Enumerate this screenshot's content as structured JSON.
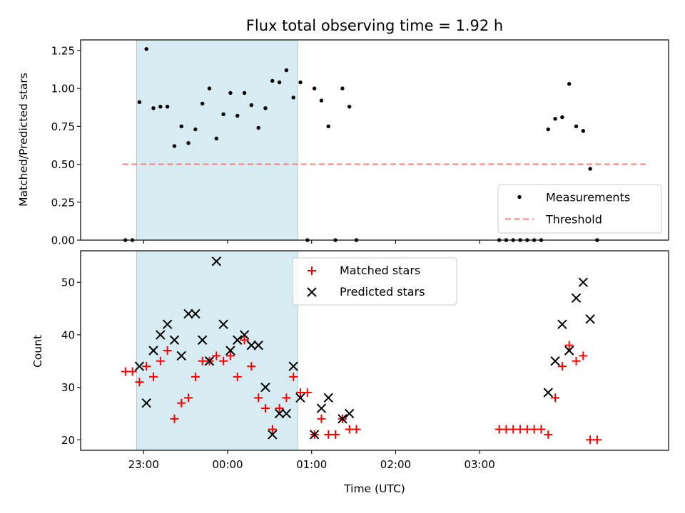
{
  "chart_data": [
    {
      "type": "scatter",
      "title": "Flux total observing time = 1.92 h",
      "ylabel": "Matched/Predicted stars",
      "xlabel": "",
      "ylim": [
        0,
        1.32
      ],
      "xlim_minutes_from_2300": [
        -45,
        375
      ],
      "y_ticks": [
        "0.00",
        "0.25",
        "0.50",
        "0.75",
        "1.00",
        "1.25"
      ],
      "y_tick_values": [
        0,
        0.25,
        0.5,
        0.75,
        1.0,
        1.25
      ],
      "shaded_region_minutes": [
        -5,
        110
      ],
      "threshold": {
        "name": "Threshold",
        "value": 0.5,
        "x_range_minutes": [
          -15,
          360
        ],
        "color": "#ff7f7f"
      },
      "series": [
        {
          "name": "Measurements",
          "color": "#000000",
          "marker": "dot",
          "points": [
            [
              -13,
              0.0
            ],
            [
              -8,
              0.0
            ],
            [
              -3,
              0.91
            ],
            [
              2,
              1.26
            ],
            [
              7,
              0.87
            ],
            [
              12,
              0.88
            ],
            [
              17,
              0.88
            ],
            [
              22,
              0.62
            ],
            [
              27,
              0.75
            ],
            [
              32,
              0.64
            ],
            [
              37,
              0.73
            ],
            [
              42,
              0.9
            ],
            [
              47,
              1.0
            ],
            [
              52,
              0.67
            ],
            [
              57,
              0.83
            ],
            [
              62,
              0.97
            ],
            [
              67,
              0.82
            ],
            [
              72,
              0.97
            ],
            [
              77,
              0.89
            ],
            [
              82,
              0.74
            ],
            [
              87,
              0.87
            ],
            [
              92,
              1.05
            ],
            [
              97,
              1.04
            ],
            [
              102,
              1.12
            ],
            [
              107,
              0.94
            ],
            [
              112,
              1.04
            ],
            [
              117,
              0.0
            ],
            [
              122,
              1.0
            ],
            [
              127,
              0.92
            ],
            [
              132,
              0.75
            ],
            [
              137,
              0.0
            ],
            [
              142,
              1.0
            ],
            [
              147,
              0.88
            ],
            [
              152,
              0.0
            ],
            [
              254,
              0.0
            ],
            [
              259,
              0.0
            ],
            [
              264,
              0.0
            ],
            [
              269,
              0.0
            ],
            [
              274,
              0.0
            ],
            [
              279,
              0.0
            ],
            [
              284,
              0.0
            ],
            [
              289,
              0.73
            ],
            [
              294,
              0.8
            ],
            [
              299,
              0.81
            ],
            [
              304,
              1.03
            ],
            [
              309,
              0.75
            ],
            [
              314,
              0.72
            ],
            [
              319,
              0.47
            ],
            [
              324,
              0.0
            ]
          ]
        }
      ],
      "legend": "lower-right"
    },
    {
      "type": "scatter",
      "title": "",
      "ylabel": "Count",
      "xlabel": "Time (UTC)",
      "ylim": [
        18,
        56
      ],
      "xlim_minutes_from_2300": [
        -45,
        375
      ],
      "x_ticks": [
        "23:00",
        "00:00",
        "01:00",
        "02:00",
        "03:00"
      ],
      "x_tick_minutes": [
        0,
        60,
        120,
        180,
        240
      ],
      "y_ticks": [
        "20",
        "30",
        "40",
        "50"
      ],
      "y_tick_values": [
        20,
        30,
        40,
        50
      ],
      "shaded_region_minutes": [
        -5,
        110
      ],
      "series": [
        {
          "name": "Matched stars",
          "color": "#ff0000",
          "marker": "plus",
          "points": [
            [
              -13,
              33
            ],
            [
              -8,
              33
            ],
            [
              -3,
              31
            ],
            [
              2,
              34
            ],
            [
              7,
              32
            ],
            [
              12,
              35
            ],
            [
              17,
              37
            ],
            [
              22,
              24
            ],
            [
              27,
              27
            ],
            [
              32,
              28
            ],
            [
              37,
              32
            ],
            [
              42,
              35
            ],
            [
              47,
              35
            ],
            [
              52,
              36
            ],
            [
              57,
              35
            ],
            [
              62,
              36
            ],
            [
              67,
              32
            ],
            [
              72,
              39
            ],
            [
              77,
              34
            ],
            [
              82,
              28
            ],
            [
              87,
              26
            ],
            [
              92,
              22
            ],
            [
              97,
              26
            ],
            [
              102,
              28
            ],
            [
              107,
              32
            ],
            [
              112,
              29
            ],
            [
              117,
              29
            ],
            [
              122,
              21
            ],
            [
              127,
              24
            ],
            [
              132,
              21
            ],
            [
              137,
              21
            ],
            [
              142,
              24
            ],
            [
              147,
              22
            ],
            [
              152,
              22
            ],
            [
              254,
              22
            ],
            [
              259,
              22
            ],
            [
              264,
              22
            ],
            [
              269,
              22
            ],
            [
              274,
              22
            ],
            [
              279,
              22
            ],
            [
              284,
              22
            ],
            [
              289,
              21
            ],
            [
              294,
              28
            ],
            [
              299,
              34
            ],
            [
              304,
              38
            ],
            [
              309,
              35
            ],
            [
              314,
              36
            ],
            [
              319,
              20
            ],
            [
              324,
              20
            ]
          ]
        },
        {
          "name": "Predicted stars",
          "color": "#000000",
          "marker": "x",
          "points": [
            [
              -3,
              34
            ],
            [
              2,
              27
            ],
            [
              7,
              37
            ],
            [
              12,
              40
            ],
            [
              17,
              42
            ],
            [
              22,
              39
            ],
            [
              27,
              36
            ],
            [
              32,
              44
            ],
            [
              37,
              44
            ],
            [
              42,
              39
            ],
            [
              47,
              35
            ],
            [
              52,
              54
            ],
            [
              57,
              42
            ],
            [
              62,
              37
            ],
            [
              67,
              39
            ],
            [
              72,
              40
            ],
            [
              77,
              38
            ],
            [
              82,
              38
            ],
            [
              87,
              30
            ],
            [
              92,
              21
            ],
            [
              97,
              25
            ],
            [
              102,
              25
            ],
            [
              107,
              34
            ],
            [
              112,
              28
            ],
            [
              122,
              21
            ],
            [
              127,
              26
            ],
            [
              132,
              28
            ],
            [
              142,
              24
            ],
            [
              147,
              25
            ],
            [
              289,
              29
            ],
            [
              294,
              35
            ],
            [
              299,
              42
            ],
            [
              304,
              37
            ],
            [
              309,
              47
            ],
            [
              314,
              50
            ],
            [
              319,
              43
            ]
          ]
        }
      ],
      "legend": "top-center"
    }
  ]
}
